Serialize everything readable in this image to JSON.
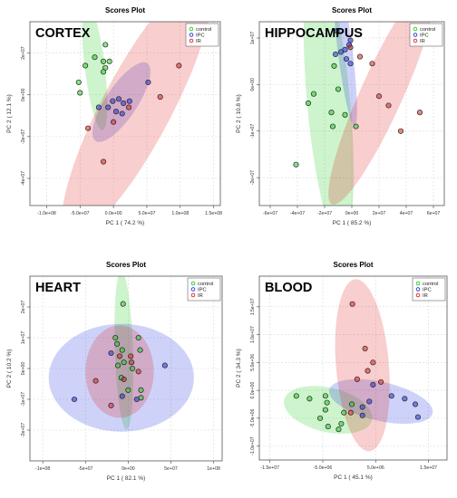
{
  "series_colors": {
    "control": "#22cc22",
    "IPC": "#2233dd",
    "IR": "#dd2222"
  },
  "chart_data": [
    {
      "type": "scatter",
      "title": "Scores Plot",
      "panel_label": "CORTEX",
      "xlabel": "PC 1 ( 74.2 %)",
      "ylabel": "PC 2 ( 12.1 %)",
      "xlim": [
        -125000000.0,
        160000000.0
      ],
      "ylim": [
        -53000000.0,
        35000000.0
      ],
      "xticks": [
        -100000000.0,
        -50000000.0,
        0,
        50000000.0,
        100000000.0,
        150000000.0
      ],
      "xtick_labels": [
        "-1.0e+08",
        "-5.0e+07",
        "0.0e+00",
        "5.0e+07",
        "1.0e+08",
        "1.5e+08"
      ],
      "yticks": [
        -40000000.0,
        -20000000.0,
        0,
        20000000.0
      ],
      "ytick_labels": [
        "-4e+07",
        "-2e+07",
        "0e+00",
        "2e+07"
      ],
      "legend": {
        "position": "top-right",
        "entries": [
          "control",
          "IPC",
          "IR"
        ]
      },
      "series": [
        {
          "name": "control",
          "points": [
            [
              -12000000.0,
              24000000.0
            ],
            [
              -28000000.0,
              18000000.0
            ],
            [
              -15000000.0,
              16000000.0
            ],
            [
              -6000000.0,
              16000000.0
            ],
            [
              -12000000.0,
              13000000.0
            ],
            [
              -42000000.0,
              14000000.0
            ],
            [
              -15000000.0,
              11000000.0
            ],
            [
              -52000000.0,
              6000000.0
            ],
            [
              -50000000.0,
              1000000.0
            ]
          ]
        },
        {
          "name": "IPC",
          "points": [
            [
              52000000.0,
              6000000.0
            ],
            [
              -1000000.0,
              -3000000.0
            ],
            [
              8000000.0,
              -2000000.0
            ],
            [
              15000000.0,
              -4000000.0
            ],
            [
              24000000.0,
              -3000000.0
            ],
            [
              -22000000.0,
              -6000000.0
            ],
            [
              -8000000.0,
              -6000000.0
            ],
            [
              13000000.0,
              -9000000.0
            ],
            [
              4000000.0,
              -8000000.0
            ]
          ]
        },
        {
          "name": "IR",
          "points": [
            [
              98000000.0,
              14000000.0
            ],
            [
              70000000.0,
              -1000000.0
            ],
            [
              23000000.0,
              -6000000.0
            ],
            [
              -38000000.0,
              -16000000.0
            ],
            [
              -15000000.0,
              -32000000.0
            ],
            [
              0,
              -13000000.0
            ]
          ]
        }
      ],
      "ellipses": [
        {
          "series": "control",
          "cx": -28000000.0,
          "cy": 13500000.0,
          "rx": 33000000.0,
          "ry": 14000000.0,
          "angle": -65
        },
        {
          "series": "IPC",
          "cx": 12000000.0,
          "cy": -3500000.0,
          "rx": 46000000.0,
          "ry": 11500000.0,
          "angle": 20
        },
        {
          "series": "IR",
          "cx": 35000000.0,
          "cy": -6000000.0,
          "rx": 125000000.0,
          "ry": 29000000.0,
          "angle": 27
        }
      ]
    },
    {
      "type": "scatter",
      "title": "Scores Plot",
      "panel_label": "HIPPOCAMPUS",
      "xlabel": "PC 1 ( 85.2 %)",
      "ylabel": "PC 2 ( 10.8 %)",
      "xlim": [
        -68000000.0,
        68000000.0
      ],
      "ylim": [
        -26000000.0,
        13500000.0
      ],
      "xticks": [
        -60000000.0,
        -40000000.0,
        -20000000.0,
        0,
        20000000.0,
        40000000.0,
        60000000.0
      ],
      "xtick_labels": [
        "-6e+07",
        "-4e+07",
        "-2e+07",
        "0e+00",
        "2e+07",
        "4e+07",
        "6e+07"
      ],
      "yticks": [
        -20000000.0,
        -10000000.0,
        0,
        10000000.0
      ],
      "ytick_labels": [
        "-2e+07",
        "-1e+07",
        "0e+00",
        "1e+07"
      ],
      "legend": {
        "position": "top-right",
        "entries": [
          "control",
          "IPC",
          "IR"
        ]
      },
      "series": [
        {
          "name": "control",
          "points": [
            [
              -13000000.0,
              4000000.0
            ],
            [
              -28000000.0,
              -2000000.0
            ],
            [
              -32000000.0,
              -4000000.0
            ],
            [
              -10000000.0,
              -1000000.0
            ],
            [
              -15000000.0,
              -6000000.0
            ],
            [
              -5000000.0,
              -6500000.0
            ],
            [
              -14000000.0,
              -9000000.0
            ],
            [
              3000000.0,
              -9000000.0
            ],
            [
              -41000000.0,
              -17200000.0
            ]
          ]
        },
        {
          "name": "IPC",
          "points": [
            [
              -11000000.0,
              11500000.0
            ],
            [
              -1000000.0,
              9500000.0
            ],
            [
              -5000000.0,
              7500000.0
            ],
            [
              -8000000.0,
              7000000.0
            ],
            [
              -2000000.0,
              8500000.0
            ],
            [
              -12000000.0,
              6500000.0
            ],
            [
              -4000000.0,
              5500000.0
            ],
            [
              -1000000.0,
              4500000.0
            ]
          ]
        },
        {
          "name": "IR",
          "points": [
            [
              6000000.0,
              6000000.0
            ],
            [
              15000000.0,
              4500000.0
            ],
            [
              20000000.0,
              -2500000.0
            ],
            [
              27000000.0,
              -4500000.0
            ],
            [
              50000000.0,
              -6000000.0
            ],
            [
              36000000.0,
              -10000000.0
            ],
            [
              -1000000.0,
              8000000.0
            ]
          ]
        }
      ],
      "ellipses": [
        {
          "series": "control",
          "cx": -17000000.0,
          "cy": -4000000.0,
          "rx": 32000000.0,
          "ry": 15000000.0,
          "angle": -68
        },
        {
          "series": "IPC",
          "cx": -5000000.0,
          "cy": 7500000.0,
          "rx": 18000000.0,
          "ry": 5000000.0,
          "angle": -65
        },
        {
          "series": "IR",
          "cx": 22000000.0,
          "cy": -2000000.0,
          "rx": 45000000.0,
          "ry": 9000000.0,
          "angle": 30
        }
      ]
    },
    {
      "type": "scatter",
      "title": "Scores Plot",
      "panel_label": "HEART",
      "xlabel": "PC 1 ( 82.1 %)",
      "ylabel": "PC 2 ( 10.2 %)",
      "xlim": [
        -115000000.0,
        110000000.0
      ],
      "ylim": [
        -30000000.0,
        30000000.0
      ],
      "xticks": [
        -100000000.0,
        -50000000.0,
        0,
        50000000.0,
        100000000.0
      ],
      "xtick_labels": [
        "-1e+08",
        "-5e+07",
        "0e+00",
        "5e+07",
        "1e+08"
      ],
      "yticks": [
        -20000000.0,
        -10000000.0,
        0,
        10000000.0,
        20000000.0
      ],
      "ytick_labels": [
        "-2e+07",
        "-1e+07",
        "0e+00",
        "1e+07",
        "2e+07"
      ],
      "legend": {
        "position": "top-right",
        "entries": [
          "control",
          "IPC",
          "IR"
        ]
      },
      "series": [
        {
          "name": "control",
          "points": [
            [
              -6000000.0,
              21000000.0
            ],
            [
              -15000000.0,
              10000000.0
            ],
            [
              12000000.0,
              10000000.0
            ],
            [
              -13000000.0,
              8000000.0
            ],
            [
              14000000.0,
              6000000.0
            ],
            [
              -7000000.0,
              6000000.0
            ],
            [
              -12000000.0,
              1000000.0
            ],
            [
              -5000000.0,
              2000000.0
            ],
            [
              5000000.0,
              0
            ],
            [
              15000000.0,
              -7000000.0
            ],
            [
              0,
              -7000000.0
            ],
            [
              15000000.0,
              -9500000.0
            ],
            [
              -8000000.0,
              -3000000.0
            ]
          ]
        },
        {
          "name": "IPC",
          "points": [
            [
              43000000.0,
              1000000.0
            ],
            [
              -63000000.0,
              -10000000.0
            ],
            [
              -20000000.0,
              5000000.0
            ],
            [
              10000000.0,
              -10000000.0
            ],
            [
              -7000000.0,
              -9000000.0
            ]
          ]
        },
        {
          "name": "IR",
          "points": [
            [
              -38000000.0,
              -4000000.0
            ],
            [
              -10000000.0,
              4000000.0
            ],
            [
              3000000.0,
              4000000.0
            ],
            [
              -20000000.0,
              -12000000.0
            ],
            [
              4000000.0,
              2000000.0
            ],
            [
              -5000000.0,
              -3500000.0
            ],
            [
              12000000.0,
              -1000000.0
            ]
          ]
        }
      ],
      "ellipses": [
        {
          "series": "control",
          "cx": -5000000.0,
          "cy": 6000000.0,
          "rx": 26000000.0,
          "ry": 10500000.0,
          "angle": -82
        },
        {
          "series": "IPC",
          "cx": -8000000.0,
          "cy": -3000000.0,
          "rx": 85000000.0,
          "ry": 17500000.0,
          "angle": 0
        },
        {
          "series": "IR",
          "cx": -10000000.0,
          "cy": -1000000.0,
          "rx": 40000000.0,
          "ry": 15000000.0,
          "angle": 0
        }
      ]
    },
    {
      "type": "scatter",
      "title": "Scores Plot",
      "panel_label": "BLOOD",
      "xlabel": "PC 1 ( 45.1 %)",
      "ylabel": "PC 2 ( 34.3 %)",
      "xlim": [
        -17000000.0,
        18500000.0
      ],
      "ylim": [
        -12500000.0,
        20500000.0
      ],
      "xticks": [
        -15000000.0,
        -5000000.0,
        5000000.0,
        15000000.0
      ],
      "xtick_labels": [
        "-1.5e+07",
        "-5.0e+06",
        "5.0e+06",
        "1.5e+07"
      ],
      "yticks": [
        -10000000.0,
        -5000000.0,
        0,
        5000000.0,
        10000000.0,
        15000000.0
      ],
      "ytick_labels": [
        "-1.0e+07",
        "-5.0e+06",
        "0.0e+00",
        "5.0e+06",
        "1.0e+07",
        "1.5e+07"
      ],
      "legend": {
        "position": "top-right",
        "entries": [
          "control",
          "IPC",
          "IR"
        ]
      },
      "series": [
        {
          "name": "control",
          "points": [
            [
              -10000000.0,
              -1000000.0
            ],
            [
              -4500000.0,
              -1000000.0
            ],
            [
              -7500000.0,
              -1500000.0
            ],
            [
              -4200000.0,
              -2200000.0
            ],
            [
              -4500000.0,
              -3500000.0
            ],
            [
              500000.0,
              -2500000.0
            ],
            [
              -1000000.0,
              -4000000.0
            ],
            [
              -5500000.0,
              -5000000.0
            ],
            [
              -1500000.0,
              -6000000.0
            ],
            [
              -4000000.0,
              -6500000.0
            ],
            [
              -2000000.0,
              -7000000.0
            ]
          ]
        },
        {
          "name": "IPC",
          "points": [
            [
              4500000.0,
              1000000.0
            ],
            [
              8000000.0,
              -1000000.0
            ],
            [
              10500000.0,
              -1500000.0
            ],
            [
              3800000.0,
              -2000000.0
            ],
            [
              12500000.0,
              -2500000.0
            ],
            [
              2500000.0,
              -3000000.0
            ],
            [
              13000000.0,
              -4800000.0
            ],
            [
              2500000.0,
              -4500000.0
            ]
          ]
        },
        {
          "name": "IR",
          "points": [
            [
              600000.0,
              15500000.0
            ],
            [
              3000000.0,
              7500000.0
            ],
            [
              4500000.0,
              5000000.0
            ],
            [
              3500000.0,
              3500000.0
            ],
            [
              1500000.0,
              2000000.0
            ],
            [
              6000000.0,
              1500000.0
            ],
            [
              300000.0,
              -4000000.0
            ]
          ]
        }
      ],
      "ellipses": [
        {
          "series": "control",
          "cx": -4000000.0,
          "cy": -3500000.0,
          "rx": 8500000.0,
          "ry": 4000000.0,
          "angle": -12
        },
        {
          "series": "IPC",
          "cx": 6000000.0,
          "cy": -2000000.0,
          "rx": 10000000.0,
          "ry": 3500000.0,
          "angle": -12
        },
        {
          "series": "IR",
          "cx": 2500000.0,
          "cy": 4500000.0,
          "rx": 15500000.0,
          "ry": 5000000.0,
          "angle": -85
        }
      ]
    }
  ]
}
